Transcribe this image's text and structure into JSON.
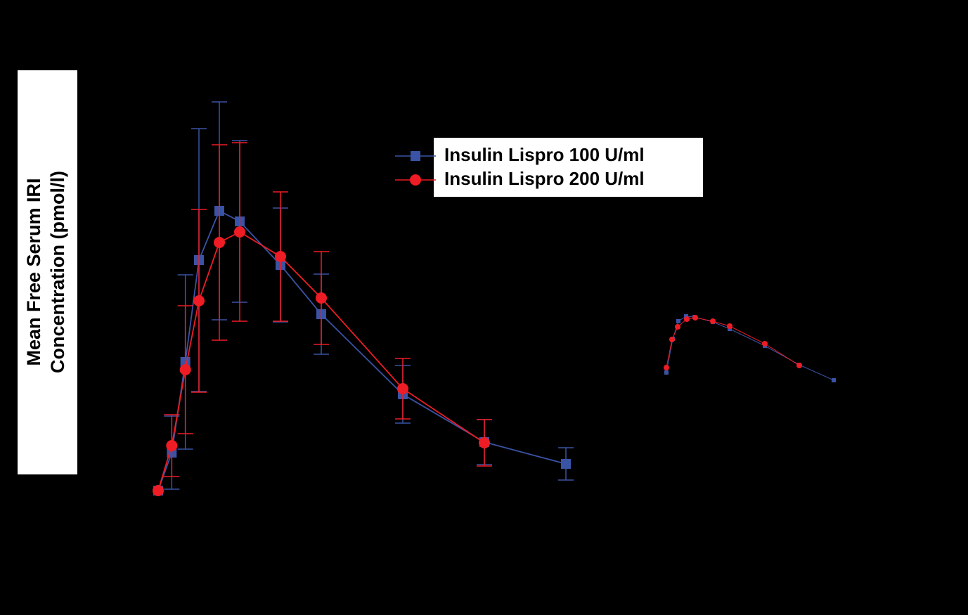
{
  "chart_data": [
    {
      "type": "line",
      "y_label_lines": [
        "Mean Free Serum IRI",
        "Concentration (pmol/l)"
      ],
      "x": [
        0,
        10,
        20,
        30,
        45,
        60,
        90,
        120,
        180,
        240,
        300
      ],
      "xlim": [
        0,
        300
      ],
      "ylim": [
        0,
        400
      ],
      "legend": "top-right",
      "series": [
        {
          "name": "Insulin Lispro 100 U/ml",
          "color": "#3a53a4",
          "marker": "square",
          "values": [
            0,
            54,
            183,
            328,
            398,
            383,
            321,
            251,
            137,
            69,
            38
          ],
          "errors": [
            null,
            52,
            124,
            187,
            155,
            115,
            81,
            57,
            41,
            32,
            23
          ]
        },
        {
          "name": "Insulin Lispro 200 U/ml",
          "color": "#ee1c25",
          "marker": "circle",
          "values": [
            0,
            64,
            172,
            270,
            353,
            368,
            333,
            274,
            145,
            68,
            null
          ],
          "errors": [
            null,
            44,
            91,
            130,
            139,
            127,
            92,
            66,
            43,
            33,
            null
          ]
        }
      ]
    },
    {
      "type": "line",
      "xlim": [
        0,
        250
      ],
      "ylim": [
        0,
        110
      ],
      "series": [
        {
          "color": "#3a53a4",
          "marker": "square",
          "x": [
            0,
            9,
            17,
            28,
            40,
            66,
            90,
            140,
            189,
            238
          ],
          "values": [
            18,
            66,
            91,
            98,
            97,
            90,
            80,
            56,
            29,
            7
          ]
        },
        {
          "color": "#ee1c25",
          "marker": "circle",
          "x": [
            0,
            8,
            16,
            29,
            41,
            66,
            90,
            140,
            189
          ],
          "values": [
            25,
            65,
            83,
            94,
            96,
            91,
            84,
            59,
            28
          ]
        }
      ]
    }
  ]
}
